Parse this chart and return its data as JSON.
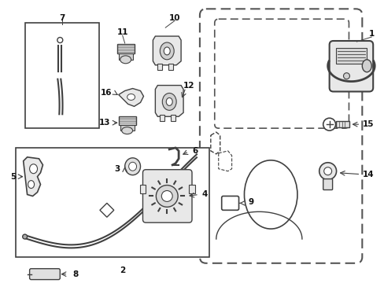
{
  "bg_color": "#ffffff",
  "line_color": "#404040",
  "fig_width": 4.89,
  "fig_height": 3.6,
  "dpi": 100
}
